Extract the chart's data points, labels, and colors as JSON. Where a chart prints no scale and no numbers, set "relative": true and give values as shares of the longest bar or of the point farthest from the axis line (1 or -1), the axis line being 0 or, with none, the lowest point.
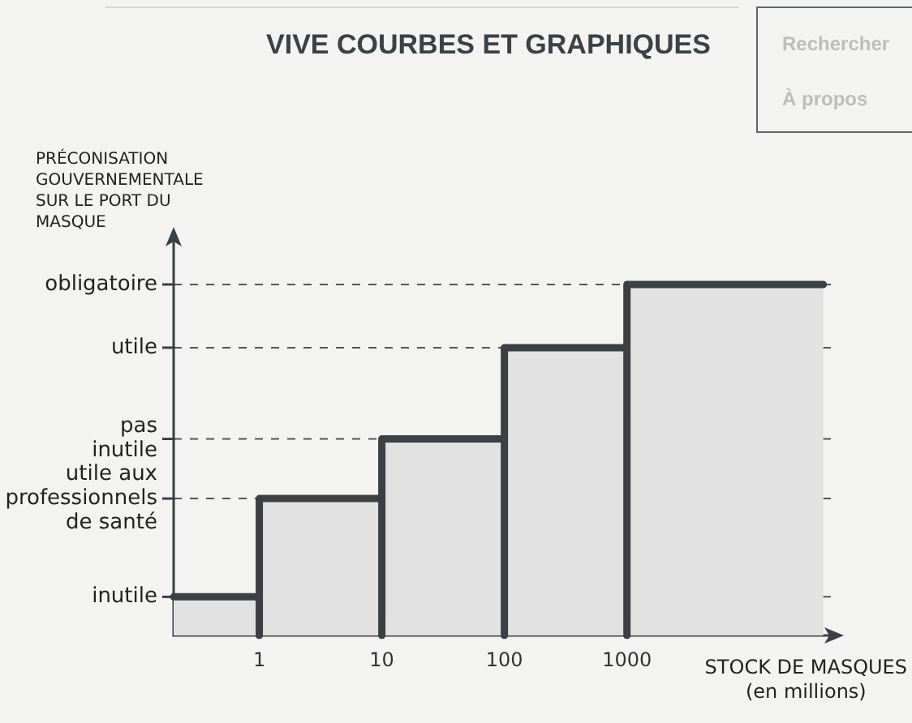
{
  "chart_data": {
    "type": "area",
    "title": "VIVE COURBES ET GRAPHIQUES",
    "xlabel": "STOCK DE MASQUES\n(en millions)",
    "ylabel": "PRÉCONISATION\nGOUVERNEMENTALE\nSUR LE PORT DU\nMASQUE",
    "x": [
      0.2,
      1,
      1,
      1,
      10,
      10,
      10,
      100,
      100,
      100,
      1000,
      1000,
      1000,
      40000
    ],
    "values": [
      0.11,
      0.11,
      0,
      0.39,
      0.39,
      0,
      0.56,
      0.56,
      0,
      0.82,
      0.82,
      0,
      1,
      1
    ],
    "relative": true,
    "color": "#3b4045",
    "log": "x",
    "xlim": [
      0.2,
      50000
    ],
    "xticks": [
      1,
      10,
      100,
      1000
    ],
    "ref_lines": [
      {
        "axis": "y",
        "value": 0.11,
        "label": "inutile",
        "line_style": "dashed"
      },
      {
        "axis": "y",
        "value": 0.39,
        "label": "utile aux\nprofessionnels\nde santé",
        "line_style": "dashed"
      },
      {
        "axis": "y",
        "value": 0.56,
        "label": "pas\ninutile",
        "line_style": "dashed"
      },
      {
        "axis": "y",
        "value": 0.82,
        "label": "utile",
        "line_style": "dashed"
      },
      {
        "axis": "y",
        "value": 1,
        "label": "obligatoire",
        "line_style": "dashed"
      }
    ],
    "annotations": [
      "Rechercher",
      "À propos"
    ]
  }
}
